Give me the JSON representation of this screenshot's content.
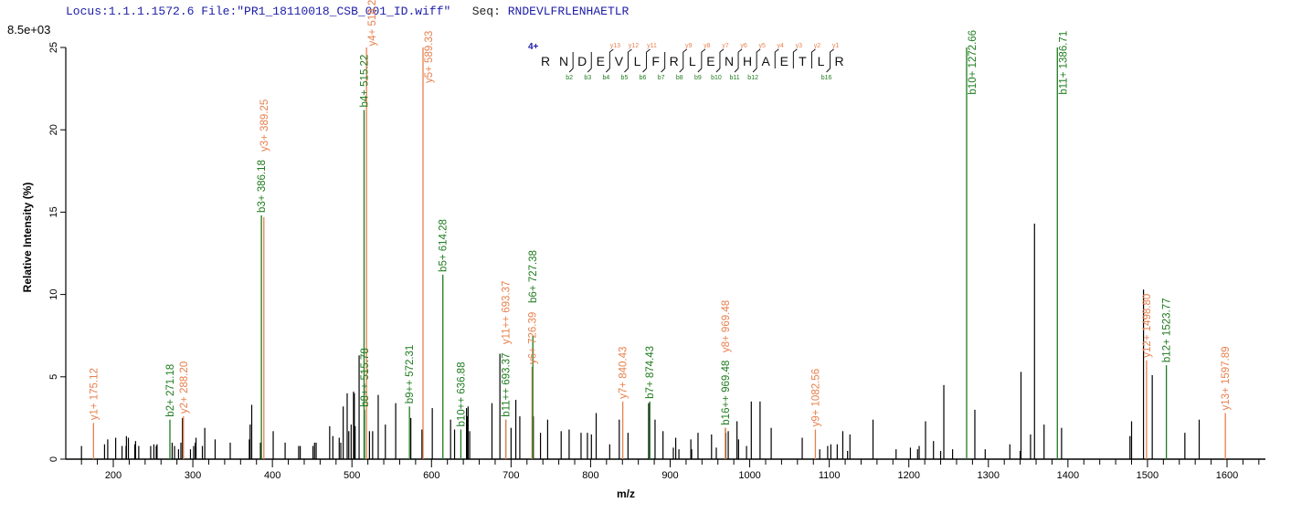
{
  "header": {
    "locus": "Locus:1.1.1.1572.6",
    "file": "File:\"PR1_18110018_CSB_001_ID.wiff\"",
    "seq_label": "Seq:",
    "seq_value": "RNDEVLFRLENHAETLR"
  },
  "scale_label": "8.5e+03",
  "sequence_panel": {
    "charge": "4+",
    "residues": [
      "R",
      "N",
      "D",
      "E",
      "V",
      "L",
      "F",
      "R",
      "L",
      "E",
      "N",
      "H",
      "A",
      "E",
      "T",
      "L",
      "R"
    ],
    "cleavages": [
      {
        "after": 2,
        "b": "b2",
        "y": ""
      },
      {
        "after": 3,
        "b": "b3",
        "y": ""
      },
      {
        "after": 4,
        "b": "b4",
        "y": "y13"
      },
      {
        "after": 5,
        "b": "b5",
        "y": "y12"
      },
      {
        "after": 6,
        "b": "b6",
        "y": "y11"
      },
      {
        "after": 7,
        "b": "b7",
        "y": ""
      },
      {
        "after": 8,
        "b": "b8",
        "y": "y9"
      },
      {
        "after": 9,
        "b": "b9",
        "y": "y8"
      },
      {
        "after": 10,
        "b": "b10",
        "y": "y7"
      },
      {
        "after": 11,
        "b": "b11",
        "y": "y6"
      },
      {
        "after": 12,
        "b": "b12",
        "y": "y5"
      },
      {
        "after": 13,
        "b": "",
        "y": "y4"
      },
      {
        "after": 14,
        "b": "",
        "y": "y3"
      },
      {
        "after": 15,
        "b": "",
        "y": "y2"
      },
      {
        "after": 16,
        "b": "b16",
        "y": "y1"
      }
    ]
  },
  "chart_data": {
    "type": "bar",
    "title": "",
    "xlabel": "m/z",
    "ylabel": "Relative  Intensity (%)",
    "xlim": [
      140,
      1648
    ],
    "ylim": [
      0,
      25
    ],
    "x_ticks": [
      200,
      300,
      400,
      500,
      600,
      700,
      800,
      900,
      1000,
      1100,
      1200,
      1300,
      1400,
      1500,
      1600
    ],
    "y_ticks": [
      0,
      5,
      10,
      15,
      20,
      25
    ],
    "grid": false,
    "colors": {
      "y_ion": "#e8804e",
      "b_ion": "#1e7b1e",
      "unassigned": "#000000",
      "sequence_charge": "#1c1ca8"
    },
    "unassigned_peaks": [
      [
        160,
        0.8
      ],
      [
        189,
        0.9
      ],
      [
        193,
        1.2
      ],
      [
        203,
        1.3
      ],
      [
        211,
        0.8
      ],
      [
        216,
        0.8
      ],
      [
        216.5,
        1.4
      ],
      [
        219,
        1.3
      ],
      [
        227,
        0.9
      ],
      [
        228,
        1.1
      ],
      [
        232,
        0.8
      ],
      [
        247,
        0.8
      ],
      [
        251,
        0.9
      ],
      [
        254,
        0.8
      ],
      [
        255,
        0.9
      ],
      [
        274,
        1.0
      ],
      [
        277,
        0.8
      ],
      [
        282,
        0.6
      ],
      [
        285,
        1.0
      ],
      [
        287,
        2.5
      ],
      [
        297,
        0.6
      ],
      [
        301,
        0.8
      ],
      [
        303,
        1.0
      ],
      [
        304,
        1.3
      ],
      [
        312,
        0.8
      ],
      [
        315,
        1.9
      ],
      [
        328,
        1.2
      ],
      [
        347,
        1.0
      ],
      [
        371,
        1.2
      ],
      [
        372,
        2.1
      ],
      [
        374,
        3.3
      ],
      [
        385,
        1.0
      ],
      [
        401,
        1.7
      ],
      [
        416,
        1.0
      ],
      [
        433,
        0.8
      ],
      [
        435,
        0.8
      ],
      [
        451,
        0.8
      ],
      [
        453,
        1.0
      ],
      [
        455,
        1.0
      ],
      [
        472,
        2.0
      ],
      [
        476,
        1.4
      ],
      [
        484,
        1.3
      ],
      [
        486,
        1.0
      ],
      [
        489,
        3.2
      ],
      [
        494,
        4.0
      ],
      [
        496,
        1.7
      ],
      [
        499,
        2.1
      ],
      [
        502,
        4.1
      ],
      [
        503,
        4.0
      ],
      [
        504,
        2.0
      ],
      [
        509,
        6.3
      ],
      [
        522,
        1.7
      ],
      [
        526,
        1.7
      ],
      [
        533,
        3.9
      ],
      [
        542,
        2.1
      ],
      [
        555,
        3.4
      ],
      [
        574,
        2.5
      ],
      [
        588,
        1.8
      ],
      [
        589,
        1.7
      ],
      [
        601,
        3.1
      ],
      [
        624,
        2.4
      ],
      [
        629,
        1.8
      ],
      [
        644,
        3.1
      ],
      [
        645,
        2.6
      ],
      [
        646,
        3.2
      ],
      [
        648,
        1.7
      ],
      [
        676,
        3.4
      ],
      [
        686,
        6.4
      ],
      [
        700,
        1.9
      ],
      [
        706,
        3.6
      ],
      [
        711,
        2.6
      ],
      [
        728,
        2.6
      ],
      [
        737,
        1.6
      ],
      [
        746,
        2.4
      ],
      [
        763,
        1.7
      ],
      [
        773,
        1.8
      ],
      [
        788,
        1.6
      ],
      [
        796,
        1.6
      ],
      [
        801,
        1.5
      ],
      [
        807,
        2.8
      ],
      [
        824,
        0.9
      ],
      [
        836,
        2.4
      ],
      [
        847,
        1.6
      ],
      [
        873,
        3.4
      ],
      [
        881,
        2.4
      ],
      [
        891,
        1.7
      ],
      [
        904,
        0.7
      ],
      [
        907,
        1.3
      ],
      [
        911,
        0.6
      ],
      [
        926,
        1.2
      ],
      [
        927,
        0.6
      ],
      [
        935,
        1.6
      ],
      [
        952,
        1.5
      ],
      [
        958,
        0.7
      ],
      [
        970,
        1.6
      ],
      [
        973,
        1.7
      ],
      [
        984,
        2.3
      ],
      [
        986,
        1.2
      ],
      [
        996,
        0.8
      ],
      [
        1002,
        3.5
      ],
      [
        1013,
        3.5
      ],
      [
        1027,
        1.9
      ],
      [
        1066,
        1.3
      ],
      [
        1088,
        0.6
      ],
      [
        1098,
        0.8
      ],
      [
        1102,
        0.9
      ],
      [
        1110,
        0.9
      ],
      [
        1117,
        1.7
      ],
      [
        1123,
        0.5
      ],
      [
        1126,
        1.5
      ],
      [
        1155,
        2.4
      ],
      [
        1184,
        0.6
      ],
      [
        1202,
        0.7
      ],
      [
        1211,
        0.6
      ],
      [
        1213,
        0.8
      ],
      [
        1221,
        2.3
      ],
      [
        1231,
        1.1
      ],
      [
        1240,
        0.5
      ],
      [
        1244,
        4.5
      ],
      [
        1255,
        0.6
      ],
      [
        1283,
        3.0
      ],
      [
        1296,
        0.6
      ],
      [
        1327,
        0.9
      ],
      [
        1340,
        0.5
      ],
      [
        1341,
        5.3
      ],
      [
        1353,
        1.5
      ],
      [
        1358,
        14.3
      ],
      [
        1370,
        2.1
      ],
      [
        1392,
        1.9
      ],
      [
        1478,
        1.4
      ],
      [
        1480,
        2.3
      ],
      [
        1495,
        10.3
      ],
      [
        1506,
        5.1
      ],
      [
        1547,
        1.6
      ],
      [
        1565,
        2.4
      ]
    ],
    "annotated_peaks": [
      {
        "label": "y1+ 175.12",
        "mz": 175.12,
        "intensity": 2.2,
        "ion": "y"
      },
      {
        "label": "b2+ 271.18",
        "mz": 271.18,
        "intensity": 2.4,
        "ion": "b"
      },
      {
        "label": "y2+ 288.20",
        "mz": 288.2,
        "intensity": 2.6,
        "ion": "y"
      },
      {
        "label": "b3+ 386.18",
        "mz": 386.18,
        "intensity": 14.8,
        "ion": "b"
      },
      {
        "label": "y3+ 389.25",
        "mz": 389.25,
        "intensity": 14.7,
        "ion": "y"
      },
      {
        "label": "b4+ 515.22",
        "mz": 515.22,
        "intensity": 21.2,
        "ion": "b"
      },
      {
        "label": "b8++ 515.78",
        "mz": 515.78,
        "intensity": 3.0,
        "ion": "b"
      },
      {
        "label": "y4+ 518.29",
        "mz": 518.29,
        "intensity": 25,
        "ion": "y"
      },
      {
        "label": "b9++ 572.31",
        "mz": 572.31,
        "intensity": 3.2,
        "ion": "b"
      },
      {
        "label": "y5+ 589.33",
        "mz": 589.33,
        "intensity": 25,
        "ion": "y"
      },
      {
        "label": "b5+ 614.28",
        "mz": 614.28,
        "intensity": 11.2,
        "ion": "b"
      },
      {
        "label": "b10++ 636.88",
        "mz": 636.88,
        "intensity": 1.8,
        "ion": "b"
      },
      {
        "label": "b11++ 693.37",
        "mz": 693.37,
        "intensity": 2.4,
        "ion": "b"
      },
      {
        "label": "y11++ 693.37",
        "mz": 693.37,
        "intensity": 2.4,
        "ion": "y"
      },
      {
        "label": "y6+ 726.39",
        "mz": 726.39,
        "intensity": 5.6,
        "ion": "y"
      },
      {
        "label": "b6+ 727.38",
        "mz": 727.38,
        "intensity": 7.5,
        "ion": "b"
      },
      {
        "label": "y7+ 840.43",
        "mz": 840.43,
        "intensity": 3.5,
        "ion": "y"
      },
      {
        "label": "b7+ 874.43",
        "mz": 874.43,
        "intensity": 3.5,
        "ion": "b"
      },
      {
        "label": "b16++ 969.48",
        "mz": 969.48,
        "intensity": 1.9,
        "ion": "b"
      },
      {
        "label": "y8+ 969.48",
        "mz": 969.48,
        "intensity": 1.9,
        "ion": "y"
      },
      {
        "label": "y9+ 1082.56",
        "mz": 1082.56,
        "intensity": 1.8,
        "ion": "y"
      },
      {
        "label": "b10+ 1272.66",
        "mz": 1272.66,
        "intensity": 25,
        "ion": "b"
      },
      {
        "label": "b11+ 1386.71",
        "mz": 1386.71,
        "intensity": 25,
        "ion": "b"
      },
      {
        "label": "y12+ 1498.80",
        "mz": 1498.8,
        "intensity": 6.0,
        "ion": "y"
      },
      {
        "label": "b12+ 1523.77",
        "mz": 1523.77,
        "intensity": 5.7,
        "ion": "b"
      },
      {
        "label": "y13+ 1597.89",
        "mz": 1597.89,
        "intensity": 2.8,
        "ion": "y"
      }
    ]
  }
}
